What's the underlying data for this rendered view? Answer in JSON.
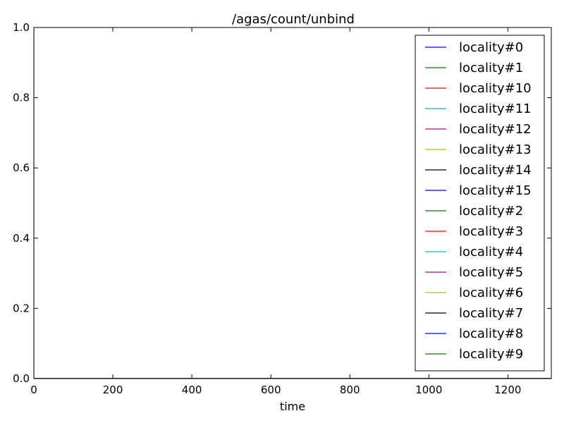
{
  "chart_data": {
    "type": "line",
    "title": "/agas/count/unbind",
    "xlabel": "time",
    "ylabel": "",
    "xlim": [
      0,
      1310
    ],
    "ylim": [
      0.0,
      1.0
    ],
    "x_ticks": [
      0,
      200,
      400,
      600,
      800,
      1000,
      1200
    ],
    "x_tick_labels": [
      "0",
      "200",
      "400",
      "600",
      "800",
      "1000",
      "1200"
    ],
    "y_ticks": [
      0.0,
      0.2,
      0.4,
      0.6,
      0.8,
      1.0
    ],
    "y_tick_labels": [
      "0.0",
      "0.2",
      "0.4",
      "0.6",
      "0.8",
      "1.0"
    ],
    "grid": false,
    "legend_position": "top-right",
    "series": [
      {
        "name": "locality#0",
        "color": "#0000ff",
        "x": [
          0,
          0,
          1310
        ],
        "y": [
          1,
          0,
          0
        ]
      },
      {
        "name": "locality#1",
        "color": "#008000",
        "x": [
          0,
          1310
        ],
        "y": [
          0,
          0
        ]
      },
      {
        "name": "locality#10",
        "color": "#ff0000",
        "x": [
          0,
          1310
        ],
        "y": [
          0,
          0
        ]
      },
      {
        "name": "locality#11",
        "color": "#00bfbf",
        "x": [
          0,
          1310
        ],
        "y": [
          0,
          0
        ]
      },
      {
        "name": "locality#12",
        "color": "#bf00bf",
        "x": [
          0,
          1310
        ],
        "y": [
          0,
          0
        ]
      },
      {
        "name": "locality#13",
        "color": "#bfbf00",
        "x": [
          0,
          1310
        ],
        "y": [
          0,
          0
        ]
      },
      {
        "name": "locality#14",
        "color": "#000000",
        "x": [
          0,
          1310
        ],
        "y": [
          0,
          0
        ]
      },
      {
        "name": "locality#15",
        "color": "#0000ff",
        "x": [
          0,
          1310
        ],
        "y": [
          0,
          0
        ]
      },
      {
        "name": "locality#2",
        "color": "#008000",
        "x": [
          0,
          1310
        ],
        "y": [
          0,
          0
        ]
      },
      {
        "name": "locality#3",
        "color": "#ff0000",
        "x": [
          0,
          1310
        ],
        "y": [
          0,
          0
        ]
      },
      {
        "name": "locality#4",
        "color": "#00bfbf",
        "x": [
          0,
          1310
        ],
        "y": [
          0,
          0
        ]
      },
      {
        "name": "locality#5",
        "color": "#bf00bf",
        "x": [
          0,
          1310
        ],
        "y": [
          0,
          0
        ]
      },
      {
        "name": "locality#6",
        "color": "#bfbf00",
        "x": [
          0,
          1310
        ],
        "y": [
          0,
          0
        ]
      },
      {
        "name": "locality#7",
        "color": "#000000",
        "x": [
          0,
          1310
        ],
        "y": [
          0,
          0
        ]
      },
      {
        "name": "locality#8",
        "color": "#0000ff",
        "x": [
          0,
          1310
        ],
        "y": [
          0,
          0
        ]
      },
      {
        "name": "locality#9",
        "color": "#008000",
        "x": [
          0,
          1310
        ],
        "y": [
          0,
          0
        ]
      }
    ]
  }
}
